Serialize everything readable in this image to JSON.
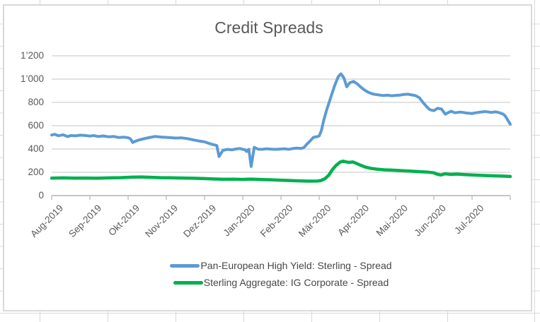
{
  "window": {
    "app_context": "spreadsheet-worksheet-with-embedded-chart"
  },
  "chart_data": {
    "type": "line",
    "title": "Credit Spreads",
    "xlabel": "",
    "ylabel": "",
    "grid": true,
    "legend_position": "bottom",
    "x_axis": {
      "unit": "months",
      "tick_labels": [
        "Aug-2019",
        "Sep-2019",
        "Okt-2019",
        "Nov-2019",
        "Dez-2019",
        "Jan-2020",
        "Feb-2020",
        "Mär-2020",
        "Apr-2020",
        "Mai-2020",
        "Jun-2020",
        "Jul-2020"
      ]
    },
    "y_axis": {
      "range": [
        0,
        1200
      ],
      "tick_values": [
        0,
        200,
        400,
        600,
        800,
        1000,
        1200
      ],
      "tick_labels": [
        "0",
        "200",
        "400",
        "600",
        "800",
        "1’000",
        "1’200"
      ]
    },
    "series": [
      {
        "name": "Pan-European High Yield: Sterling - Spread",
        "color": "#5B9BD5",
        "points": [
          [
            0,
            520
          ],
          [
            0.08,
            526
          ],
          [
            0.18,
            514
          ],
          [
            0.3,
            522
          ],
          [
            0.42,
            506
          ],
          [
            0.5,
            516
          ],
          [
            0.62,
            513
          ],
          [
            0.75,
            519
          ],
          [
            0.88,
            516
          ],
          [
            1,
            511
          ],
          [
            1.1,
            515
          ],
          [
            1.22,
            507
          ],
          [
            1.35,
            512
          ],
          [
            1.5,
            504
          ],
          [
            1.62,
            508
          ],
          [
            1.75,
            499
          ],
          [
            1.88,
            502
          ],
          [
            2,
            497
          ],
          [
            2.06,
            488
          ],
          [
            2.12,
            456
          ],
          [
            2.2,
            468
          ],
          [
            2.3,
            479
          ],
          [
            2.45,
            491
          ],
          [
            2.58,
            500
          ],
          [
            2.7,
            507
          ],
          [
            2.8,
            504
          ],
          [
            2.9,
            501
          ],
          [
            3,
            500
          ],
          [
            3.12,
            497
          ],
          [
            3.25,
            494
          ],
          [
            3.4,
            496
          ],
          [
            3.55,
            489
          ],
          [
            3.7,
            479
          ],
          [
            3.85,
            469
          ],
          [
            4,
            461
          ],
          [
            4.1,
            450
          ],
          [
            4.22,
            438
          ],
          [
            4.32,
            430
          ],
          [
            4.38,
            335
          ],
          [
            4.48,
            388
          ],
          [
            4.6,
            397
          ],
          [
            4.72,
            393
          ],
          [
            4.82,
            400
          ],
          [
            4.92,
            404
          ],
          [
            5,
            397
          ],
          [
            5.06,
            394
          ],
          [
            5.1,
            379
          ],
          [
            5.16,
            397
          ],
          [
            5.22,
            250
          ],
          [
            5.3,
            414
          ],
          [
            5.4,
            399
          ],
          [
            5.5,
            397
          ],
          [
            5.62,
            402
          ],
          [
            5.75,
            399
          ],
          [
            5.88,
            397
          ],
          [
            6,
            400
          ],
          [
            6.1,
            402
          ],
          [
            6.2,
            397
          ],
          [
            6.32,
            404
          ],
          [
            6.42,
            408
          ],
          [
            6.52,
            404
          ],
          [
            6.6,
            412
          ],
          [
            6.68,
            442
          ],
          [
            6.76,
            468
          ],
          [
            6.85,
            500
          ],
          [
            6.95,
            506
          ],
          [
            7,
            512
          ],
          [
            7.06,
            560
          ],
          [
            7.12,
            648
          ],
          [
            7.2,
            740
          ],
          [
            7.3,
            840
          ],
          [
            7.4,
            940
          ],
          [
            7.5,
            1022
          ],
          [
            7.57,
            1045
          ],
          [
            7.65,
            1008
          ],
          [
            7.72,
            934
          ],
          [
            7.8,
            968
          ],
          [
            7.9,
            980
          ],
          [
            8,
            958
          ],
          [
            8.1,
            928
          ],
          [
            8.2,
            903
          ],
          [
            8.3,
            884
          ],
          [
            8.42,
            871
          ],
          [
            8.55,
            864
          ],
          [
            8.68,
            859
          ],
          [
            8.8,
            862
          ],
          [
            8.9,
            857
          ],
          [
            9,
            860
          ],
          [
            9.1,
            862
          ],
          [
            9.2,
            867
          ],
          [
            9.32,
            870
          ],
          [
            9.42,
            864
          ],
          [
            9.52,
            858
          ],
          [
            9.62,
            840
          ],
          [
            9.72,
            798
          ],
          [
            9.82,
            760
          ],
          [
            9.9,
            737
          ],
          [
            10,
            729
          ],
          [
            10.1,
            750
          ],
          [
            10.2,
            743
          ],
          [
            10.3,
            699
          ],
          [
            10.45,
            724
          ],
          [
            10.55,
            711
          ],
          [
            10.7,
            717
          ],
          [
            10.85,
            709
          ],
          [
            11,
            704
          ],
          [
            11.1,
            711
          ],
          [
            11.22,
            717
          ],
          [
            11.35,
            721
          ],
          [
            11.5,
            714
          ],
          [
            11.62,
            719
          ],
          [
            11.72,
            711
          ],
          [
            11.82,
            699
          ],
          [
            11.88,
            678
          ],
          [
            11.94,
            645
          ],
          [
            12,
            612
          ]
        ]
      },
      {
        "name": "Sterling Aggregate: IG Corporate - Spread",
        "color": "#00B050",
        "points": [
          [
            0,
            150
          ],
          [
            0.3,
            152
          ],
          [
            0.6,
            150
          ],
          [
            0.9,
            151
          ],
          [
            1.2,
            149
          ],
          [
            1.5,
            152
          ],
          [
            1.8,
            154
          ],
          [
            2.1,
            158
          ],
          [
            2.35,
            160
          ],
          [
            2.6,
            157
          ],
          [
            2.85,
            154
          ],
          [
            3.1,
            153
          ],
          [
            3.4,
            151
          ],
          [
            3.7,
            149
          ],
          [
            4,
            146
          ],
          [
            4.2,
            143
          ],
          [
            4.5,
            140
          ],
          [
            4.75,
            141
          ],
          [
            5,
            139
          ],
          [
            5.2,
            142
          ],
          [
            5.5,
            138
          ],
          [
            5.8,
            135
          ],
          [
            6.1,
            131
          ],
          [
            6.4,
            127
          ],
          [
            6.7,
            124
          ],
          [
            6.95,
            125
          ],
          [
            7.05,
            130
          ],
          [
            7.15,
            145
          ],
          [
            7.25,
            175
          ],
          [
            7.35,
            225
          ],
          [
            7.45,
            262
          ],
          [
            7.55,
            288
          ],
          [
            7.62,
            296
          ],
          [
            7.7,
            290
          ],
          [
            7.78,
            285
          ],
          [
            7.88,
            289
          ],
          [
            8,
            273
          ],
          [
            8.1,
            258
          ],
          [
            8.2,
            246
          ],
          [
            8.35,
            234
          ],
          [
            8.5,
            227
          ],
          [
            8.7,
            221
          ],
          [
            8.9,
            219
          ],
          [
            9.1,
            215
          ],
          [
            9.35,
            210
          ],
          [
            9.6,
            206
          ],
          [
            9.85,
            201
          ],
          [
            10,
            196
          ],
          [
            10.08,
            184
          ],
          [
            10.18,
            177
          ],
          [
            10.3,
            187
          ],
          [
            10.45,
            182
          ],
          [
            10.6,
            185
          ],
          [
            10.8,
            180
          ],
          [
            11,
            177
          ],
          [
            11.2,
            174
          ],
          [
            11.5,
            170
          ],
          [
            11.8,
            167
          ],
          [
            12,
            164
          ]
        ]
      }
    ]
  },
  "style_colors": {
    "plot_gridline": "#D9D9D9",
    "axis_line": "#BFBFBF",
    "axis_text": "#595959",
    "title_text": "#595959",
    "legend_text": "#474747",
    "chart_border": "#D9D9D9",
    "worksheet_gridline": "#D9D9D9"
  }
}
